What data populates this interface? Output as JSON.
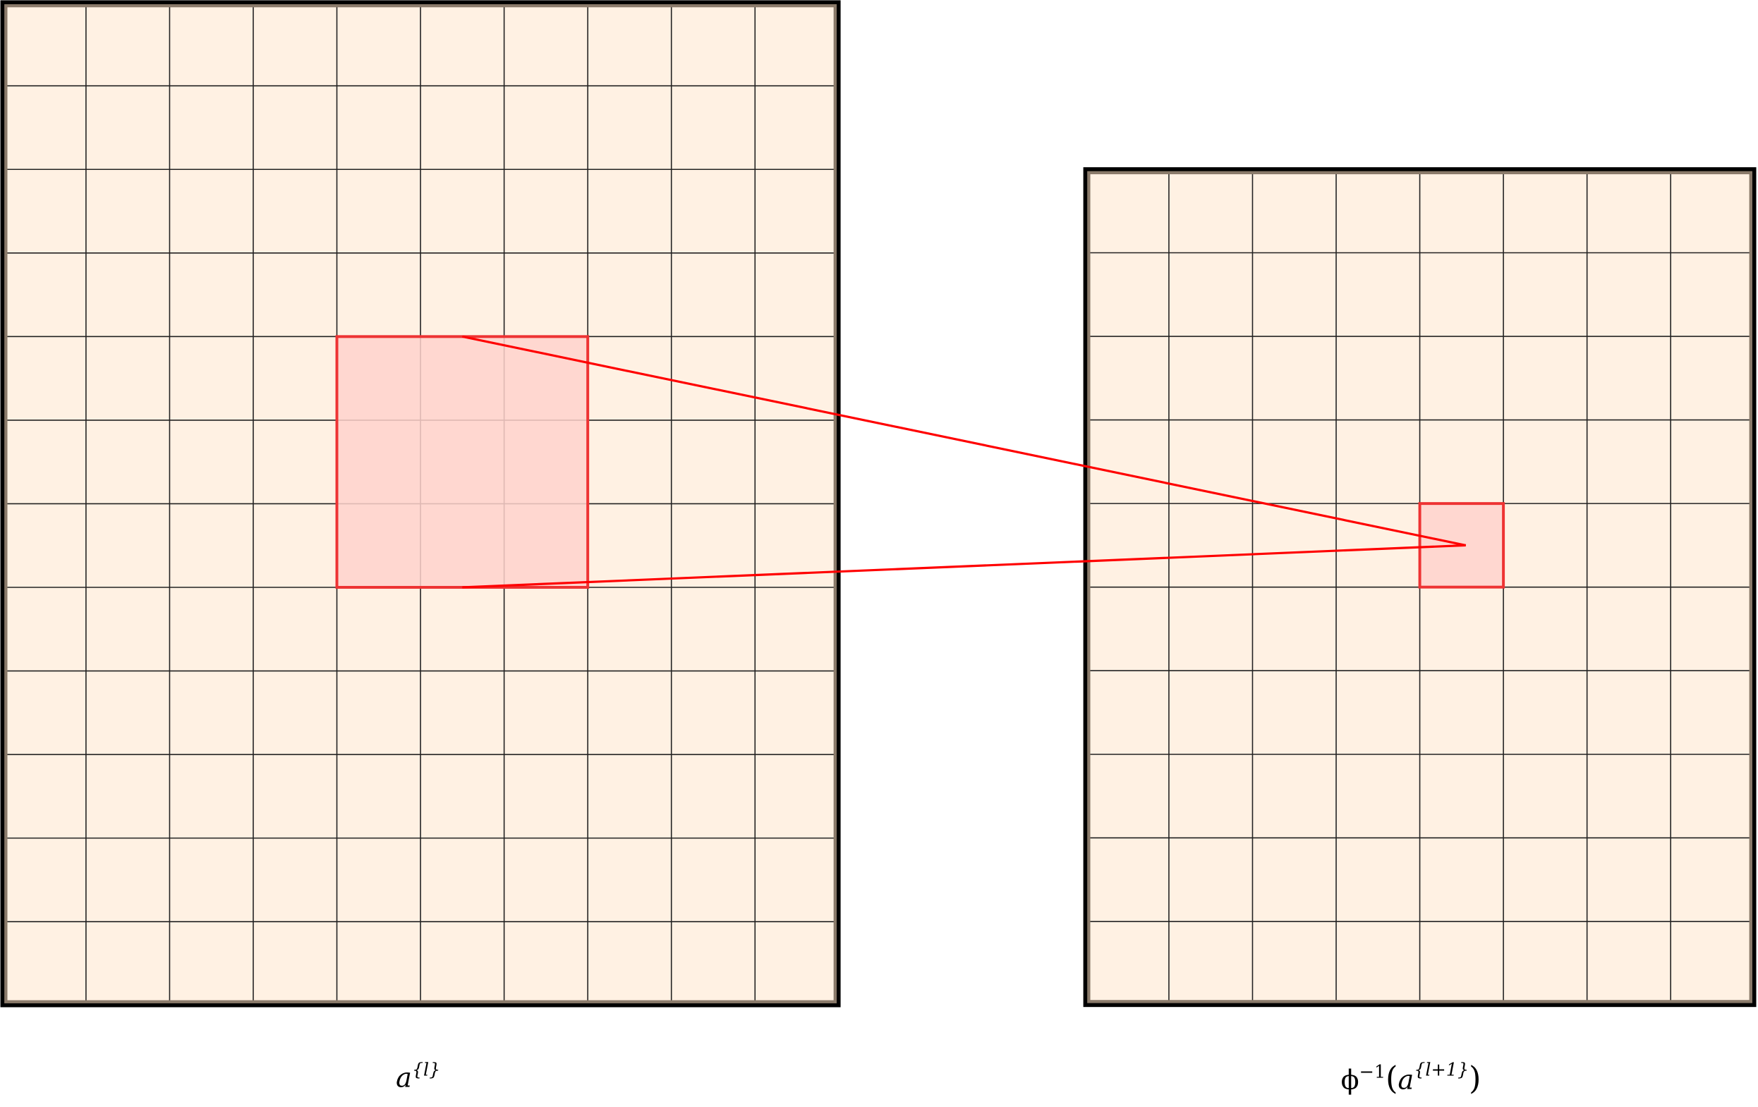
{
  "colors": {
    "cell_fill": "#fff1e3",
    "grid_line": "#000000",
    "inner_border": "#8a7a6a",
    "highlight_fill": "#ffd2cc",
    "highlight_stroke": "#ee3333",
    "connector": "#ff0000"
  },
  "left_grid": {
    "columns": 10,
    "rows": 12,
    "highlight": {
      "col_start": 4,
      "row_start": 4,
      "size": 3
    },
    "label": {
      "base": "a",
      "sup": "{l}"
    }
  },
  "right_grid": {
    "columns": 8,
    "rows": 10,
    "highlight": {
      "col_start": 4,
      "row_start": 4,
      "size": 1
    },
    "label": {
      "prefix": "ϕ",
      "prefix_sup": "−1",
      "open": "(",
      "base": "a",
      "sup": "{l+1}",
      "close": ")"
    }
  }
}
